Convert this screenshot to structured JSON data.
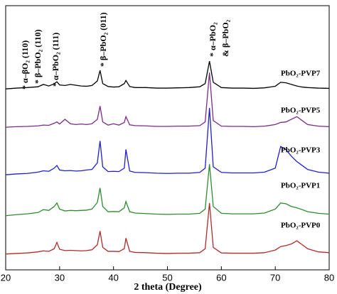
{
  "chart_data": {
    "type": "line",
    "x_label": "2 theta (Degree)",
    "x": [
      20,
      22,
      24,
      26,
      27,
      28,
      29,
      29.5,
      30,
      31,
      32,
      33,
      34,
      35,
      36,
      37,
      37.5,
      38,
      39,
      40,
      41,
      42,
      42.3,
      43,
      44,
      46,
      48,
      50,
      52,
      54,
      56,
      57,
      57.8,
      58.5,
      60,
      62,
      64,
      66,
      68,
      70,
      71,
      72,
      73,
      74,
      75,
      76,
      78,
      80
    ],
    "series": [
      {
        "name": "PbO₂-PVP7",
        "color": "#000000",
        "values": [
          68.5,
          68.8,
          69.0,
          69.3,
          70.2,
          69.6,
          70.4,
          71.2,
          70.0,
          69.8,
          70.2,
          69.9,
          69.6,
          69.5,
          69.8,
          71.5,
          75.5,
          70.5,
          69.4,
          69.2,
          69.3,
          70.5,
          71.7,
          69.4,
          69.0,
          69.0,
          68.8,
          68.8,
          68.9,
          69.0,
          69.3,
          70.5,
          79.0,
          71.0,
          69.0,
          68.8,
          68.8,
          68.7,
          68.9,
          69.5,
          71.0,
          70.8,
          70.2,
          69.6,
          69.2,
          69.0,
          68.8,
          68.7
        ]
      },
      {
        "name": "PbO₂-PVP5",
        "color": "#7b2a8a",
        "values": [
          54.0,
          54.2,
          54.3,
          54.5,
          54.8,
          54.7,
          55.5,
          56.0,
          55.2,
          57.0,
          55.3,
          55.0,
          55.2,
          55.0,
          55.3,
          57.0,
          62.0,
          56.0,
          54.8,
          55.3,
          54.8,
          55.8,
          58.0,
          54.9,
          54.6,
          54.5,
          54.3,
          54.3,
          54.4,
          54.4,
          54.6,
          56.0,
          74.7,
          56.5,
          54.4,
          54.3,
          54.3,
          54.2,
          54.4,
          55.0,
          55.8,
          56.0,
          57.0,
          58.0,
          56.5,
          55.0,
          54.4,
          54.2
        ]
      },
      {
        "name": "PbO₂-PVP3",
        "color": "#1f1fd0",
        "values": [
          36.0,
          36.3,
          36.5,
          37.0,
          37.5,
          37.3,
          38.5,
          39.5,
          37.8,
          37.5,
          37.6,
          37.4,
          37.5,
          37.8,
          38.0,
          40.5,
          48.8,
          39.0,
          37.2,
          37.3,
          37.2,
          38.5,
          45.6,
          37.4,
          36.9,
          36.8,
          36.6,
          36.5,
          36.6,
          36.6,
          36.9,
          38.5,
          61.3,
          39.0,
          36.9,
          36.7,
          36.7,
          36.7,
          37.0,
          38.5,
          46.7,
          45.5,
          43.0,
          41.0,
          39.5,
          38.0,
          37.0,
          36.6
        ]
      },
      {
        "name": "PbO₂-PVP1",
        "color": "#2e8b2e",
        "values": [
          20.5,
          20.9,
          21.2,
          21.7,
          22.8,
          22.5,
          24.0,
          25.3,
          23.0,
          22.3,
          22.5,
          22.4,
          22.5,
          22.6,
          23.0,
          25.5,
          31.0,
          24.0,
          22.0,
          22.1,
          22.0,
          23.5,
          25.9,
          22.0,
          21.5,
          21.3,
          21.1,
          21.0,
          21.1,
          21.1,
          21.4,
          23.0,
          40.0,
          24.0,
          21.4,
          21.2,
          21.2,
          21.2,
          21.5,
          23.0,
          25.3,
          25.0,
          24.0,
          23.5,
          22.8,
          22.0,
          21.4,
          21.1
        ]
      },
      {
        "name": "PbO₂-PVP0",
        "color": "#b22a2a",
        "values": [
          6.0,
          6.2,
          6.4,
          6.8,
          7.2,
          7.0,
          8.0,
          10.4,
          7.8,
          7.3,
          7.4,
          7.3,
          7.2,
          7.3,
          7.6,
          9.5,
          14.7,
          8.5,
          7.0,
          7.0,
          6.9,
          8.0,
          12.0,
          7.0,
          6.6,
          6.5,
          6.3,
          6.2,
          6.3,
          6.3,
          6.5,
          8.0,
          25.3,
          8.5,
          6.4,
          6.3,
          6.3,
          6.3,
          6.5,
          7.5,
          8.8,
          9.2,
          9.8,
          11.0,
          9.5,
          8.0,
          6.8,
          6.5
        ]
      }
    ],
    "annotations": [
      "* α–βO₂ (110)",
      "* β–PbO₂ (110)",
      "* α–PbO₂ (111)",
      "* β–PbO₂ (011)",
      "* α–PbO₂",
      "& β–PbO₂"
    ],
    "xlim": [
      20,
      80
    ],
    "xticks": [
      20,
      30,
      40,
      50,
      60,
      70,
      80
    ],
    "ylim": [
      0,
      100
    ]
  }
}
